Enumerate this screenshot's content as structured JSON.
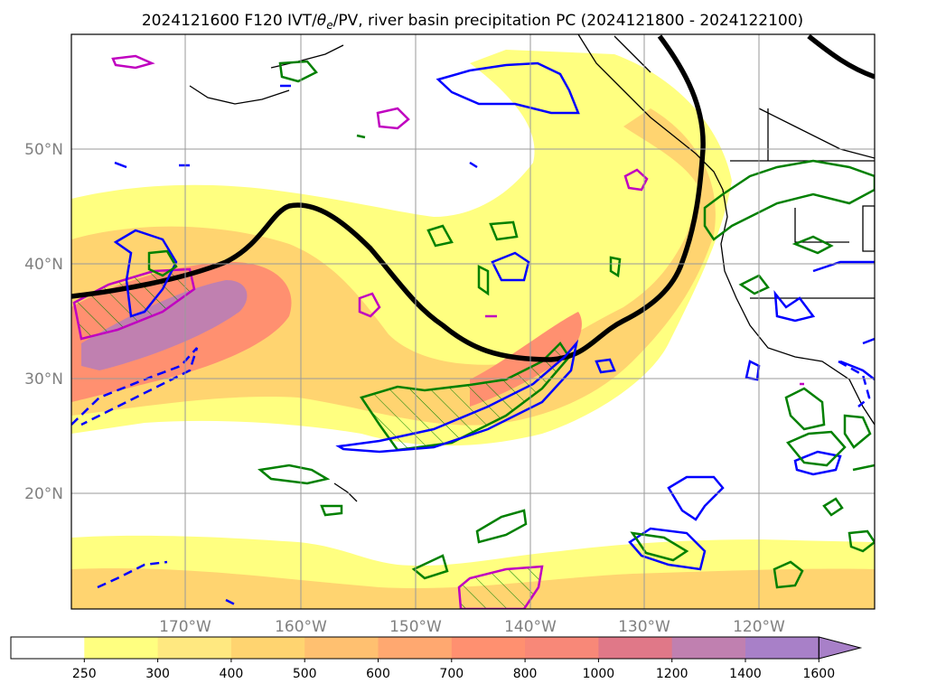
{
  "title_prefix": "2024121600 F120 IVT/",
  "title_theta": "θ",
  "title_theta_sub": "e",
  "title_suffix": "/PV, river basin precipitation PC (2024121800 - 2024122100)",
  "lat_labels": [
    "50°N",
    "40°N",
    "30°N",
    "20°N"
  ],
  "lon_labels": [
    "170°W",
    "160°W",
    "150°W",
    "140°W",
    "130°W",
    "120°W"
  ],
  "colorbar": {
    "ticks": [
      "250",
      "300",
      "400",
      "500",
      "600",
      "700",
      "800",
      "1000",
      "1200",
      "1400",
      "1600"
    ],
    "colors": [
      "#ffffff",
      "#ffff80",
      "#ffe880",
      "#ffd470",
      "#ffc070",
      "#ffa870",
      "#ff9070",
      "#f88878",
      "#e07888",
      "#c080b0",
      "#a880c8"
    ]
  },
  "map_colors": {
    "ivt_light": "#ffff80",
    "ivt_mid": "#ffd470",
    "ivt_high": "#ff9070",
    "ivt_max": "#c080b0",
    "theta_e_contour": "#000000",
    "blue_contour": "#0000ff",
    "green_contour": "#008000",
    "magenta_contour": "#c000c0"
  }
}
